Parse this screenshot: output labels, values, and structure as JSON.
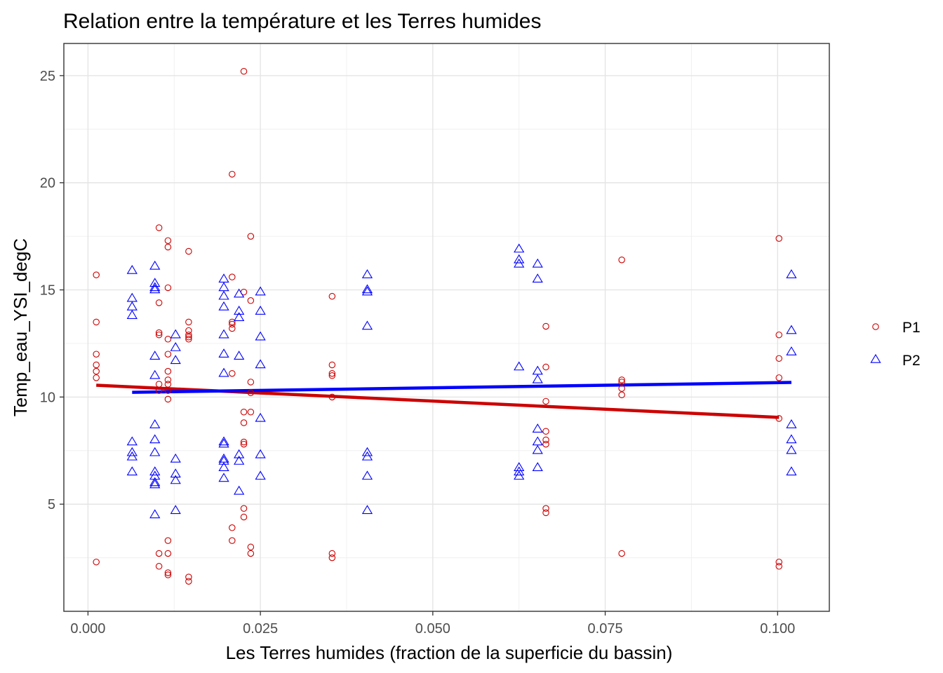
{
  "chart_data": {
    "type": "scatter",
    "title": "Relation entre la température et les Terres humides",
    "xlabel": "Les Terres humides (fraction de la superficie du bassin)",
    "ylabel": "Temp_eau_YSI_degC",
    "xlim": [
      -0.0035,
      0.1075
    ],
    "ylim": [
      0.0,
      26.5
    ],
    "x_ticks": [
      "0.000",
      "0.025",
      "0.050",
      "0.075",
      "0.100"
    ],
    "y_ticks": [
      "5",
      "10",
      "15",
      "20",
      "25"
    ],
    "grid": true,
    "legend_position": "right",
    "series": [
      {
        "name": "P1",
        "color": "#cc0000",
        "marker": "circle",
        "points": [
          [
            0.0012,
            15.7
          ],
          [
            0.0012,
            13.5
          ],
          [
            0.0012,
            12.0
          ],
          [
            0.0012,
            11.5
          ],
          [
            0.0012,
            11.2
          ],
          [
            0.0012,
            10.9
          ],
          [
            0.0012,
            2.3
          ],
          [
            0.0103,
            17.9
          ],
          [
            0.0103,
            14.4
          ],
          [
            0.0103,
            13.0
          ],
          [
            0.0103,
            12.9
          ],
          [
            0.0103,
            10.6
          ],
          [
            0.0103,
            10.3
          ],
          [
            0.0103,
            2.7
          ],
          [
            0.0103,
            2.1
          ],
          [
            0.0116,
            17.3
          ],
          [
            0.0116,
            17.0
          ],
          [
            0.0116,
            15.1
          ],
          [
            0.0116,
            12.7
          ],
          [
            0.0116,
            12.0
          ],
          [
            0.0116,
            11.2
          ],
          [
            0.0116,
            10.8
          ],
          [
            0.0116,
            10.6
          ],
          [
            0.0116,
            10.3
          ],
          [
            0.0116,
            9.9
          ],
          [
            0.0116,
            3.3
          ],
          [
            0.0116,
            2.7
          ],
          [
            0.0116,
            1.8
          ],
          [
            0.0116,
            1.7
          ],
          [
            0.0146,
            16.8
          ],
          [
            0.0146,
            13.5
          ],
          [
            0.0146,
            13.1
          ],
          [
            0.0146,
            12.9
          ],
          [
            0.0146,
            12.8
          ],
          [
            0.0146,
            12.7
          ],
          [
            0.0146,
            1.6
          ],
          [
            0.0146,
            1.4
          ],
          [
            0.0209,
            20.4
          ],
          [
            0.0209,
            15.6
          ],
          [
            0.0209,
            13.5
          ],
          [
            0.0209,
            13.4
          ],
          [
            0.0209,
            13.2
          ],
          [
            0.0209,
            11.1
          ],
          [
            0.0209,
            3.9
          ],
          [
            0.0209,
            3.3
          ],
          [
            0.0226,
            25.2
          ],
          [
            0.0226,
            14.9
          ],
          [
            0.0226,
            9.3
          ],
          [
            0.0226,
            8.8
          ],
          [
            0.0226,
            7.9
          ],
          [
            0.0226,
            7.8
          ],
          [
            0.0226,
            4.8
          ],
          [
            0.0226,
            4.4
          ],
          [
            0.0236,
            17.5
          ],
          [
            0.0236,
            14.5
          ],
          [
            0.0236,
            10.7
          ],
          [
            0.0236,
            10.2
          ],
          [
            0.0236,
            9.3
          ],
          [
            0.0236,
            3.0
          ],
          [
            0.0236,
            2.7
          ],
          [
            0.0354,
            14.7
          ],
          [
            0.0354,
            11.5
          ],
          [
            0.0354,
            11.1
          ],
          [
            0.0354,
            11.0
          ],
          [
            0.0354,
            10.0
          ],
          [
            0.0354,
            2.7
          ],
          [
            0.0354,
            2.5
          ],
          [
            0.0664,
            13.3
          ],
          [
            0.0664,
            11.4
          ],
          [
            0.0664,
            9.8
          ],
          [
            0.0664,
            8.4
          ],
          [
            0.0664,
            8.0
          ],
          [
            0.0664,
            7.8
          ],
          [
            0.0664,
            4.8
          ],
          [
            0.0664,
            4.6
          ],
          [
            0.0774,
            16.4
          ],
          [
            0.0774,
            10.8
          ],
          [
            0.0774,
            10.7
          ],
          [
            0.0774,
            10.4
          ],
          [
            0.0774,
            10.1
          ],
          [
            0.0774,
            2.7
          ],
          [
            0.1002,
            17.4
          ],
          [
            0.1002,
            12.9
          ],
          [
            0.1002,
            11.8
          ],
          [
            0.1002,
            10.9
          ],
          [
            0.1002,
            9.0
          ],
          [
            0.1002,
            2.3
          ],
          [
            0.1002,
            2.1
          ]
        ],
        "fit": [
          [
            0.0012,
            10.55
          ],
          [
            0.1002,
            9.05
          ]
        ]
      },
      {
        "name": "P2",
        "color": "#0000ff",
        "marker": "triangle",
        "points": [
          [
            0.0064,
            15.9
          ],
          [
            0.0064,
            14.6
          ],
          [
            0.0064,
            14.2
          ],
          [
            0.0064,
            13.8
          ],
          [
            0.0064,
            7.9
          ],
          [
            0.0064,
            7.4
          ],
          [
            0.0064,
            7.2
          ],
          [
            0.0064,
            6.5
          ],
          [
            0.0097,
            16.1
          ],
          [
            0.0097,
            15.3
          ],
          [
            0.0097,
            15.1
          ],
          [
            0.0097,
            15.0
          ],
          [
            0.0097,
            11.9
          ],
          [
            0.0097,
            11.0
          ],
          [
            0.0097,
            8.7
          ],
          [
            0.0097,
            8.0
          ],
          [
            0.0097,
            7.4
          ],
          [
            0.0097,
            6.5
          ],
          [
            0.0097,
            6.3
          ],
          [
            0.0097,
            6.0
          ],
          [
            0.0097,
            5.9
          ],
          [
            0.0097,
            4.5
          ],
          [
            0.0127,
            12.9
          ],
          [
            0.0127,
            12.3
          ],
          [
            0.0127,
            11.7
          ],
          [
            0.0127,
            7.1
          ],
          [
            0.0127,
            6.4
          ],
          [
            0.0127,
            6.1
          ],
          [
            0.0127,
            4.7
          ],
          [
            0.0197,
            15.5
          ],
          [
            0.0197,
            15.1
          ],
          [
            0.0197,
            14.7
          ],
          [
            0.0197,
            14.2
          ],
          [
            0.0197,
            12.9
          ],
          [
            0.0197,
            12.0
          ],
          [
            0.0197,
            11.1
          ],
          [
            0.0197,
            7.9
          ],
          [
            0.0197,
            7.8
          ],
          [
            0.0197,
            7.1
          ],
          [
            0.0197,
            7.0
          ],
          [
            0.0197,
            6.7
          ],
          [
            0.0197,
            6.2
          ],
          [
            0.0219,
            14.8
          ],
          [
            0.0219,
            14.0
          ],
          [
            0.0219,
            13.7
          ],
          [
            0.0219,
            11.9
          ],
          [
            0.0219,
            7.3
          ],
          [
            0.0219,
            7.0
          ],
          [
            0.0219,
            5.6
          ],
          [
            0.025,
            14.9
          ],
          [
            0.025,
            14.0
          ],
          [
            0.025,
            12.8
          ],
          [
            0.025,
            11.5
          ],
          [
            0.025,
            9.0
          ],
          [
            0.025,
            7.3
          ],
          [
            0.025,
            6.3
          ],
          [
            0.0405,
            15.7
          ],
          [
            0.0405,
            15.0
          ],
          [
            0.0405,
            14.9
          ],
          [
            0.0405,
            13.3
          ],
          [
            0.0405,
            7.4
          ],
          [
            0.0405,
            7.2
          ],
          [
            0.0405,
            6.3
          ],
          [
            0.0405,
            4.7
          ],
          [
            0.0625,
            16.9
          ],
          [
            0.0625,
            16.4
          ],
          [
            0.0625,
            16.2
          ],
          [
            0.0625,
            11.4
          ],
          [
            0.0625,
            6.7
          ],
          [
            0.0625,
            6.5
          ],
          [
            0.0625,
            6.3
          ],
          [
            0.0652,
            16.2
          ],
          [
            0.0652,
            15.5
          ],
          [
            0.0652,
            11.2
          ],
          [
            0.0652,
            10.8
          ],
          [
            0.0652,
            8.5
          ],
          [
            0.0652,
            7.9
          ],
          [
            0.0652,
            7.5
          ],
          [
            0.0652,
            6.7
          ],
          [
            0.102,
            15.7
          ],
          [
            0.102,
            13.1
          ],
          [
            0.102,
            12.1
          ],
          [
            0.102,
            8.7
          ],
          [
            0.102,
            8.0
          ],
          [
            0.102,
            7.5
          ],
          [
            0.102,
            6.5
          ]
        ],
        "fit": [
          [
            0.0064,
            10.22
          ],
          [
            0.102,
            10.68
          ]
        ]
      }
    ]
  }
}
